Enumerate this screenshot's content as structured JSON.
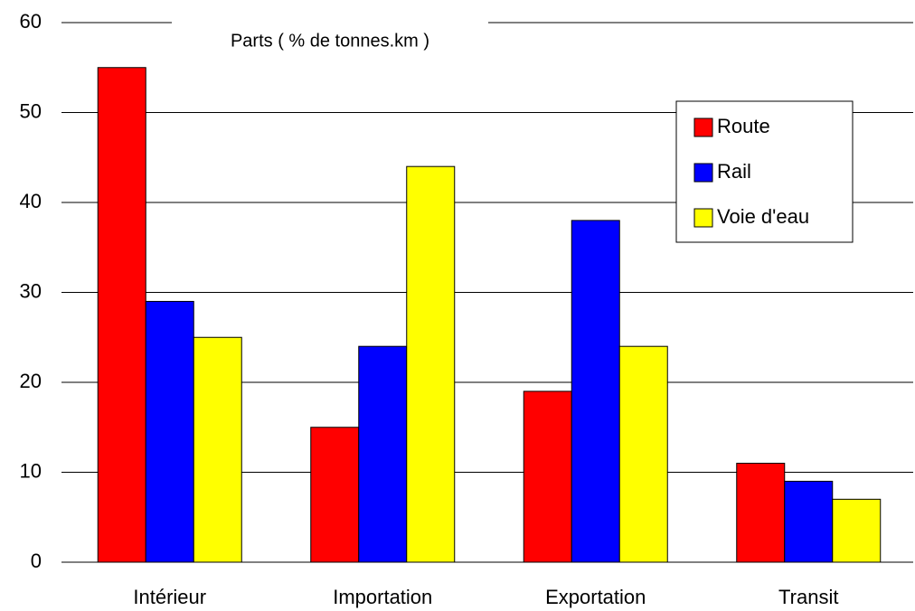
{
  "chart_data": {
    "type": "bar",
    "title": "Parts ( % de tonnes.km )",
    "categories": [
      "Intérieur",
      "Importation",
      "Exportation",
      "Transit"
    ],
    "series": [
      {
        "name": "Route",
        "color": "#ff0000",
        "values": [
          55,
          15,
          19,
          11
        ]
      },
      {
        "name": "Rail",
        "color": "#0000ff",
        "values": [
          29,
          24,
          38,
          9
        ]
      },
      {
        "name": "Voie d'eau",
        "color": "#ffff00",
        "values": [
          25,
          44,
          24,
          7
        ]
      }
    ],
    "ylim": [
      0,
      60
    ],
    "yticks": [
      0,
      10,
      20,
      30,
      40,
      50,
      60
    ],
    "grid": true,
    "legend": "upper right"
  }
}
